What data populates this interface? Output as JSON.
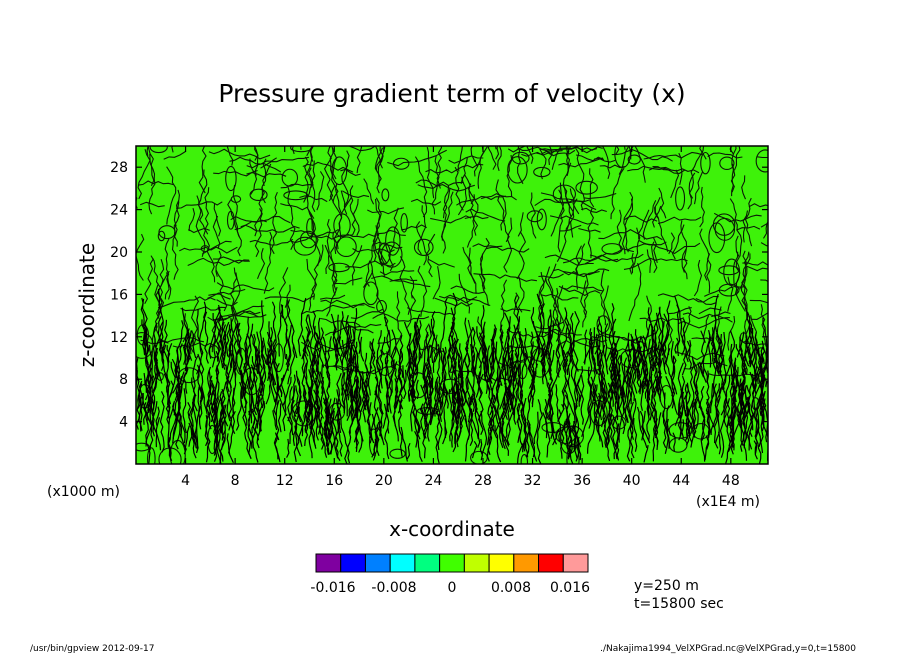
{
  "chart_data": {
    "type": "heatmap",
    "title": "Pressure gradient term of velocity (x)",
    "xlabel": "x-coordinate",
    "ylabel": "z-coordinate",
    "x_unit_left": "(x1000 m)",
    "x_unit_right": "(x1E4 m)",
    "x_ticks": [
      4,
      8,
      12,
      16,
      20,
      24,
      28,
      32,
      36,
      40,
      44,
      48
    ],
    "y_ticks": [
      4,
      8,
      12,
      16,
      20,
      24,
      28
    ],
    "xlim": [
      0,
      51
    ],
    "ylim": [
      0,
      30
    ],
    "grid": false,
    "colorbar": {
      "colors": [
        "#7f00a0",
        "#0000ff",
        "#0080ff",
        "#00ffff",
        "#00ff80",
        "#40ff00",
        "#c0ff00",
        "#ffff00",
        "#ff9900",
        "#ff0000",
        "#ff9a9a"
      ],
      "tick_labels": [
        "-0.016",
        "-0.008",
        "0",
        "0.008",
        "0.016"
      ]
    },
    "info": [
      "y=250 m",
      "t=15800 sec"
    ]
  },
  "footer": {
    "left": "/usr/bin/gpview  2012-09-17",
    "right": "./Nakajima1994_VelXPGrad.nc@VelXPGrad,y=0,t=15800"
  }
}
